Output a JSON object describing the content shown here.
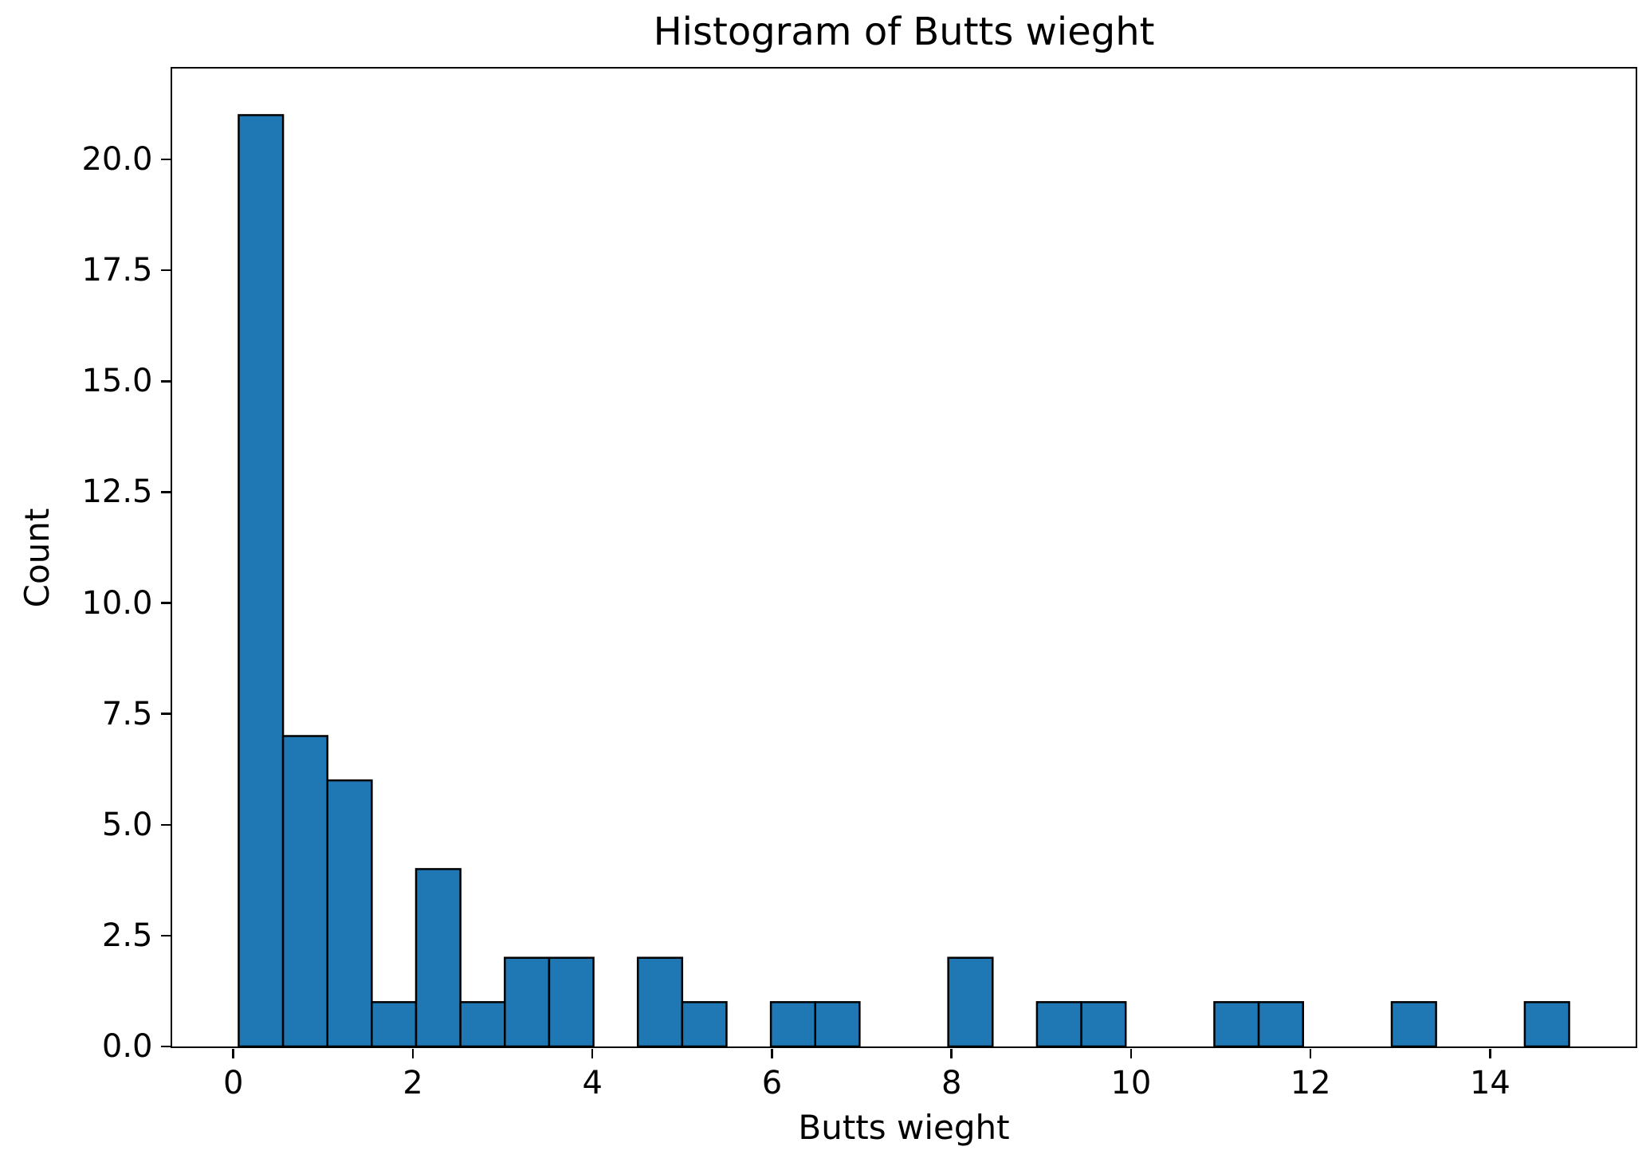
{
  "chart_data": {
    "type": "bar",
    "subtype": "histogram",
    "title": "Histogram of Butts wieght",
    "xlabel": "Butts wieght",
    "ylabel": "Count",
    "grid": false,
    "legend": null,
    "bar_fill": "#1f77b4",
    "bar_edge": "#000000",
    "bin_edges": [
      0.06,
      0.554,
      1.048,
      1.542,
      2.036,
      2.53,
      3.024,
      3.518,
      4.012,
      4.506,
      5.0,
      5.494,
      5.988,
      6.482,
      6.976,
      7.47,
      7.964,
      8.458,
      8.952,
      9.446,
      9.94,
      10.434,
      10.928,
      11.422,
      11.916,
      12.41,
      12.904,
      13.398,
      13.892,
      14.386,
      14.88
    ],
    "counts": [
      21,
      7,
      6,
      1,
      4,
      1,
      2,
      2,
      0,
      2,
      1,
      0,
      1,
      1,
      0,
      0,
      2,
      0,
      1,
      1,
      0,
      0,
      1,
      1,
      0,
      0,
      1,
      0,
      0,
      1
    ],
    "xlim": [
      -0.681,
      15.621
    ],
    "ylim": [
      0,
      22.05
    ],
    "x_ticks": [
      0,
      2,
      4,
      6,
      8,
      10,
      12,
      14
    ],
    "x_tick_labels": [
      "0",
      "2",
      "4",
      "6",
      "8",
      "10",
      "12",
      "14"
    ],
    "y_ticks": [
      0.0,
      2.5,
      5.0,
      7.5,
      10.0,
      12.5,
      15.0,
      17.5,
      20.0
    ],
    "y_tick_labels": [
      "0.0",
      "2.5",
      "5.0",
      "7.5",
      "10.0",
      "12.5",
      "15.0",
      "17.5",
      "20.0"
    ]
  }
}
